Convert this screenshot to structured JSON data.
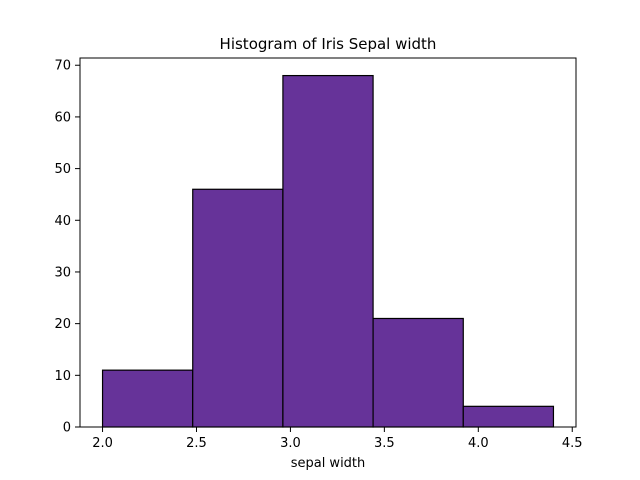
{
  "chart_data": {
    "type": "bar",
    "title": "Histogram of Iris Sepal width",
    "xlabel": "sepal width",
    "ylabel": "",
    "bins": [
      {
        "start": 2.0,
        "end": 2.48,
        "count": 11
      },
      {
        "start": 2.48,
        "end": 2.96,
        "count": 46
      },
      {
        "start": 2.96,
        "end": 3.44,
        "count": 68
      },
      {
        "start": 3.44,
        "end": 3.92,
        "count": 21
      },
      {
        "start": 3.92,
        "end": 4.4,
        "count": 4
      }
    ],
    "xlim": [
      1.88,
      4.52
    ],
    "ylim": [
      0,
      71.4
    ],
    "xticks": [
      2.0,
      2.5,
      3.0,
      3.5,
      4.0,
      4.5
    ],
    "xtick_labels": [
      "2.0",
      "2.5",
      "3.0",
      "3.5",
      "4.0",
      "4.5"
    ],
    "yticks": [
      0,
      10,
      20,
      30,
      40,
      50,
      60,
      70
    ],
    "ytick_labels": [
      "0",
      "10",
      "20",
      "30",
      "40",
      "50",
      "60",
      "70"
    ],
    "grid": false,
    "bar_color": "#663399",
    "edge_color": "#000000"
  }
}
